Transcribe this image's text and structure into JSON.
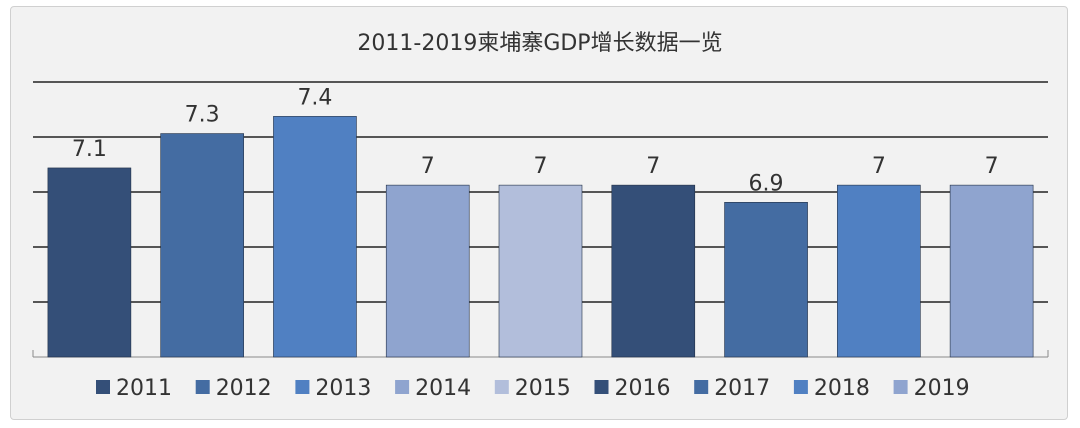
{
  "chart_data": {
    "type": "bar",
    "title": "2011-2019柬埔寨GDP增长数据一览",
    "categories": [
      "2011",
      "2012",
      "2013",
      "2014",
      "2015",
      "2016",
      "2017",
      "2018",
      "2019"
    ],
    "values": [
      7.1,
      7.3,
      7.4,
      7,
      7,
      7,
      6.9,
      7,
      7
    ],
    "value_labels": [
      "7.1",
      "7.3",
      "7.4",
      "7",
      "7",
      "7",
      "6.9",
      "7",
      "7"
    ],
    "colors": [
      "#344f78",
      "#446ca2",
      "#5080c2",
      "#8fa4cf",
      "#b2bedb",
      "#344f78",
      "#446ca2",
      "#5080c2",
      "#8fa4cf"
    ],
    "ylim": [
      6,
      7.6
    ],
    "grid": true,
    "legend_position": "bottom",
    "xlabel": "",
    "ylabel": ""
  }
}
